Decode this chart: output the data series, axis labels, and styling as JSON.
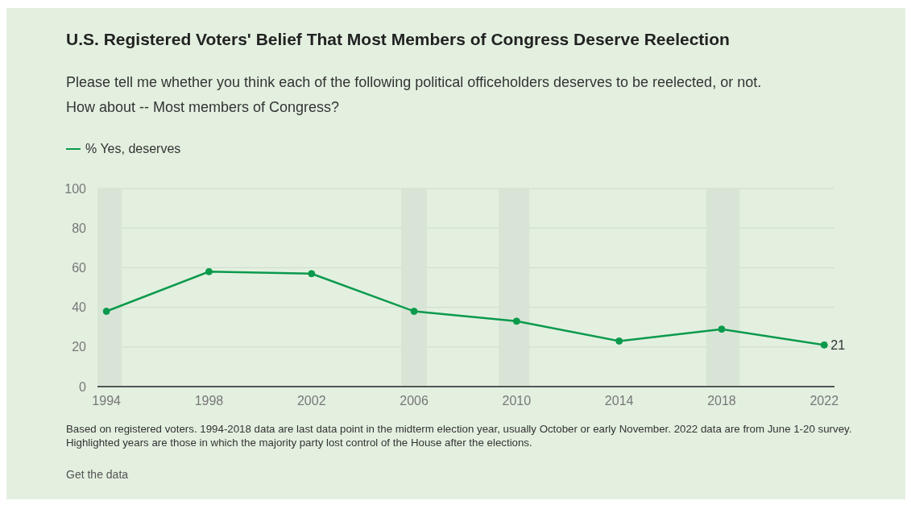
{
  "chart_data": {
    "type": "line",
    "title": "U.S. Registered Voters' Belief That Most Members of Congress Deserve Reelection",
    "subtitle": "Please tell me whether you think each of the following political officeholders deserves to be reelected, or not. How about -- Most members of Congress?",
    "x": [
      1994,
      1998,
      2002,
      2006,
      2010,
      2014,
      2018,
      2022
    ],
    "series": [
      {
        "name": "% Yes, deserves",
        "color": "#0b9a4c",
        "values": [
          38,
          58,
          57,
          38,
          33,
          23,
          29,
          21
        ],
        "value_labels": [
          null,
          null,
          null,
          null,
          null,
          null,
          null,
          "21"
        ]
      }
    ],
    "xlim": [
      1993.65,
      2022.4
    ],
    "xticks": [
      1994,
      1998,
      2002,
      2006,
      2010,
      2014,
      2018,
      2022
    ],
    "ylim": [
      0,
      100
    ],
    "yticks": [
      0,
      20,
      40,
      60,
      80,
      100
    ],
    "bands": [
      {
        "axis": "x",
        "from": 1993.65,
        "to": 1994.6,
        "color": "#d8e5d6"
      },
      {
        "axis": "x",
        "from": 2005.5,
        "to": 2006.5,
        "color": "#d8e5d6"
      },
      {
        "axis": "x",
        "from": 2009.3,
        "to": 2010.5,
        "color": "#d8e5d6"
      },
      {
        "axis": "x",
        "from": 2017.4,
        "to": 2018.7,
        "color": "#d8e5d6"
      }
    ],
    "grid": "y",
    "legend": "top left",
    "marker": "circle",
    "line_style": "solid",
    "annotations": [
      "Based on registered voters. 1994-2018 data are last data point in the midterm election year, usually October or early November. 2022 data are from June 1-20 survey. Highlighted years are those in which the majority party lost control of the House after the elections.",
      "Get the data"
    ]
  }
}
